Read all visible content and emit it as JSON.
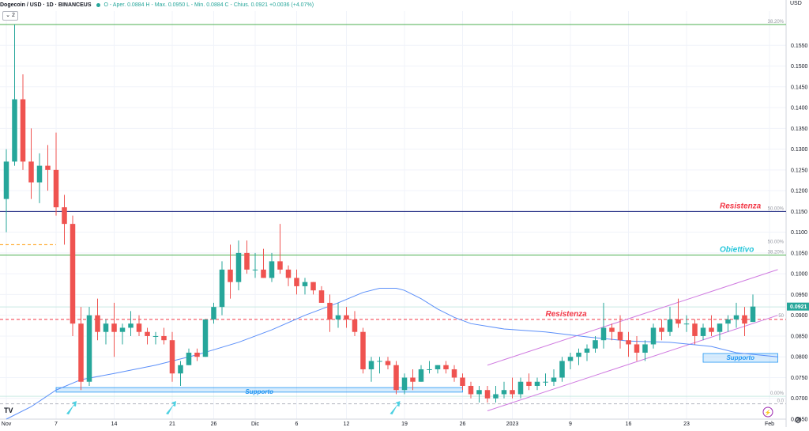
{
  "legend": {
    "symbol": "Dogecoin / USD · 1D · BINANCEUS",
    "ohlc": "O - Aper. 0.0884  H - Max. 0.0950  L - Min. 0.0884  C - Chius. 0.0921 +0.0036 (+4.07%)",
    "collapse_label": "⌄ 2"
  },
  "axis": {
    "currency": "USD",
    "settings_icon": "⚙",
    "lightning_icon": "⚡"
  },
  "chart_data": {
    "type": "candlestick",
    "title": "",
    "ylim": [
      0.065,
      0.16
    ],
    "y_ticks": [
      "0.1550",
      "0.1500",
      "0.1450",
      "0.1400",
      "0.1350",
      "0.1300",
      "0.1250",
      "0.1200",
      "0.1150",
      "0.1100",
      "0.1050",
      "0.1000",
      "0.0950",
      "0.0900",
      "0.0850",
      "0.0800",
      "0.0750",
      "0.0700",
      "0.0650"
    ],
    "x_ticks": [
      {
        "label": "Nov",
        "i": 0
      },
      {
        "label": "7",
        "i": 6
      },
      {
        "label": "14",
        "i": 13
      },
      {
        "label": "21",
        "i": 20
      },
      {
        "label": "26",
        "i": 25
      },
      {
        "label": "Dic",
        "i": 30
      },
      {
        "label": "6",
        "i": 35
      },
      {
        "label": "12",
        "i": 41
      },
      {
        "label": "19",
        "i": 48
      },
      {
        "label": "26",
        "i": 55
      },
      {
        "label": "2023",
        "i": 61
      },
      {
        "label": "9",
        "i": 68
      },
      {
        "label": "16",
        "i": 75
      },
      {
        "label": "23",
        "i": 82
      },
      {
        "label": "Feb",
        "i": 92
      }
    ],
    "candles": [
      [
        0.118,
        0.13,
        0.11,
        0.127
      ],
      [
        0.127,
        0.16,
        0.126,
        0.142
      ],
      [
        0.142,
        0.148,
        0.125,
        0.127
      ],
      [
        0.127,
        0.135,
        0.118,
        0.122
      ],
      [
        0.122,
        0.129,
        0.117,
        0.126
      ],
      [
        0.126,
        0.131,
        0.12,
        0.125
      ],
      [
        0.125,
        0.134,
        0.114,
        0.116
      ],
      [
        0.116,
        0.119,
        0.107,
        0.112
      ],
      [
        0.112,
        0.114,
        0.085,
        0.088
      ],
      [
        0.088,
        0.092,
        0.072,
        0.074
      ],
      [
        0.074,
        0.092,
        0.073,
        0.09
      ],
      [
        0.09,
        0.094,
        0.084,
        0.086
      ],
      [
        0.086,
        0.089,
        0.083,
        0.088
      ],
      [
        0.088,
        0.093,
        0.08,
        0.086
      ],
      [
        0.086,
        0.088,
        0.083,
        0.087
      ],
      [
        0.087,
        0.091,
        0.085,
        0.088
      ],
      [
        0.088,
        0.09,
        0.085,
        0.086
      ],
      [
        0.086,
        0.087,
        0.083,
        0.085
      ],
      [
        0.085,
        0.086,
        0.083,
        0.085
      ],
      [
        0.085,
        0.087,
        0.083,
        0.084
      ],
      [
        0.084,
        0.086,
        0.074,
        0.076
      ],
      [
        0.076,
        0.079,
        0.073,
        0.078
      ],
      [
        0.078,
        0.082,
        0.078,
        0.081
      ],
      [
        0.081,
        0.082,
        0.079,
        0.08
      ],
      [
        0.08,
        0.089,
        0.08,
        0.089
      ],
      [
        0.089,
        0.093,
        0.088,
        0.092
      ],
      [
        0.092,
        0.103,
        0.09,
        0.101
      ],
      [
        0.101,
        0.107,
        0.094,
        0.098
      ],
      [
        0.098,
        0.108,
        0.096,
        0.105
      ],
      [
        0.105,
        0.108,
        0.1,
        0.101
      ],
      [
        0.101,
        0.105,
        0.099,
        0.101
      ],
      [
        0.101,
        0.106,
        0.099,
        0.099
      ],
      [
        0.099,
        0.105,
        0.098,
        0.103
      ],
      [
        0.103,
        0.112,
        0.1,
        0.101
      ],
      [
        0.101,
        0.102,
        0.097,
        0.099
      ],
      [
        0.099,
        0.101,
        0.095,
        0.097
      ],
      [
        0.097,
        0.099,
        0.095,
        0.098
      ],
      [
        0.098,
        0.098,
        0.095,
        0.096
      ],
      [
        0.096,
        0.097,
        0.093,
        0.093
      ],
      [
        0.093,
        0.095,
        0.086,
        0.089
      ],
      [
        0.089,
        0.093,
        0.087,
        0.09
      ],
      [
        0.09,
        0.092,
        0.087,
        0.089
      ],
      [
        0.089,
        0.091,
        0.085,
        0.086
      ],
      [
        0.086,
        0.087,
        0.076,
        0.077
      ],
      [
        0.077,
        0.08,
        0.074,
        0.079
      ],
      [
        0.079,
        0.08,
        0.076,
        0.079
      ],
      [
        0.079,
        0.08,
        0.077,
        0.078
      ],
      [
        0.078,
        0.079,
        0.071,
        0.072
      ],
      [
        0.072,
        0.076,
        0.071,
        0.075
      ],
      [
        0.075,
        0.077,
        0.072,
        0.074
      ],
      [
        0.074,
        0.078,
        0.074,
        0.077
      ],
      [
        0.077,
        0.079,
        0.076,
        0.077
      ],
      [
        0.077,
        0.078,
        0.076,
        0.078
      ],
      [
        0.078,
        0.079,
        0.076,
        0.077
      ],
      [
        0.077,
        0.078,
        0.074,
        0.075
      ],
      [
        0.075,
        0.076,
        0.072,
        0.073
      ],
      [
        0.073,
        0.074,
        0.07,
        0.071
      ],
      [
        0.071,
        0.073,
        0.069,
        0.072
      ],
      [
        0.072,
        0.073,
        0.069,
        0.07
      ],
      [
        0.07,
        0.073,
        0.069,
        0.071
      ],
      [
        0.071,
        0.074,
        0.07,
        0.072
      ],
      [
        0.072,
        0.075,
        0.07,
        0.071
      ],
      [
        0.071,
        0.075,
        0.07,
        0.074
      ],
      [
        0.074,
        0.076,
        0.072,
        0.073
      ],
      [
        0.073,
        0.075,
        0.072,
        0.074
      ],
      [
        0.074,
        0.076,
        0.073,
        0.074
      ],
      [
        0.074,
        0.077,
        0.073,
        0.075
      ],
      [
        0.075,
        0.08,
        0.074,
        0.079
      ],
      [
        0.079,
        0.081,
        0.077,
        0.08
      ],
      [
        0.08,
        0.082,
        0.078,
        0.081
      ],
      [
        0.081,
        0.083,
        0.079,
        0.082
      ],
      [
        0.082,
        0.085,
        0.081,
        0.084
      ],
      [
        0.084,
        0.093,
        0.082,
        0.087
      ],
      [
        0.087,
        0.088,
        0.084,
        0.086
      ],
      [
        0.086,
        0.09,
        0.082,
        0.084
      ],
      [
        0.084,
        0.086,
        0.08,
        0.083
      ],
      [
        0.083,
        0.085,
        0.079,
        0.081
      ],
      [
        0.081,
        0.084,
        0.079,
        0.083
      ],
      [
        0.083,
        0.088,
        0.082,
        0.087
      ],
      [
        0.087,
        0.089,
        0.084,
        0.086
      ],
      [
        0.086,
        0.092,
        0.085,
        0.089
      ],
      [
        0.089,
        0.094,
        0.087,
        0.088
      ],
      [
        0.088,
        0.09,
        0.086,
        0.088
      ],
      [
        0.088,
        0.089,
        0.083,
        0.085
      ],
      [
        0.085,
        0.088,
        0.084,
        0.087
      ],
      [
        0.087,
        0.09,
        0.085,
        0.086
      ],
      [
        0.086,
        0.088,
        0.084,
        0.088
      ],
      [
        0.088,
        0.09,
        0.086,
        0.089
      ],
      [
        0.089,
        0.093,
        0.087,
        0.09
      ],
      [
        0.09,
        0.092,
        0.085,
        0.088
      ],
      [
        0.0884,
        0.095,
        0.0884,
        0.0921
      ]
    ],
    "moving_average": [
      [
        0,
        0.065
      ],
      [
        3,
        0.068
      ],
      [
        6,
        0.072
      ],
      [
        9,
        0.0745
      ],
      [
        13,
        0.076
      ],
      [
        18,
        0.078
      ],
      [
        23,
        0.0805
      ],
      [
        28,
        0.0835
      ],
      [
        32,
        0.0865
      ],
      [
        36,
        0.09
      ],
      [
        40,
        0.093
      ],
      [
        43,
        0.0955
      ],
      [
        45,
        0.0965
      ],
      [
        47,
        0.0965
      ],
      [
        48,
        0.096
      ],
      [
        50,
        0.094
      ],
      [
        52,
        0.0915
      ],
      [
        54,
        0.0895
      ],
      [
        56,
        0.088
      ],
      [
        60,
        0.0867
      ],
      [
        65,
        0.086
      ],
      [
        70,
        0.0848
      ],
      [
        75,
        0.0838
      ],
      [
        80,
        0.0835
      ],
      [
        85,
        0.0825
      ],
      [
        88,
        0.081
      ],
      [
        93,
        0.08
      ]
    ],
    "colors": {
      "up": "#26a69a",
      "down": "#ef5350",
      "ma": "#5b8ff9",
      "channel": "#d07be0",
      "support": "#2196f3",
      "resistance": "#f23645",
      "h_navy": "#1a237e",
      "h_green": "#4caf50",
      "arrow": "#4dd0e1",
      "grid": "#f0f3fa",
      "axis_text": "#131722",
      "fib": "#9598a1"
    },
    "hlines": [
      {
        "y": 0.16,
        "color": "#4caf50",
        "style": "solid"
      },
      {
        "y": 0.115,
        "color": "#1a237e",
        "style": "solid"
      },
      {
        "y": 0.1045,
        "color": "#4caf50",
        "style": "solid"
      },
      {
        "y": 0.089,
        "color": "#f23645",
        "style": "dashed"
      },
      {
        "y": 0.107,
        "color": "#ff9800",
        "style": "dashed",
        "to": 6
      },
      {
        "y": 0.092,
        "color": "#c9e9e3",
        "style": "solid"
      },
      {
        "y": 0.0705,
        "color": "#c9e9e3",
        "style": "solid"
      },
      {
        "y": 0.0687,
        "color": "#b2b5be",
        "style": "dashed"
      }
    ],
    "support_zones": [
      {
        "from": 6,
        "to": 55,
        "low": 0.0715,
        "high": 0.0726,
        "label": "Supporto"
      },
      {
        "from": 84,
        "to": 93,
        "low": 0.0787,
        "high": 0.0808,
        "label": "Supporto"
      }
    ],
    "channel": {
      "upper": [
        [
          58,
          0.078
        ],
        [
          93,
          0.101
        ]
      ],
      "lower": [
        [
          58,
          0.067
        ],
        [
          93,
          0.09
        ]
      ]
    },
    "annotations": [
      {
        "text": "Resistenza",
        "x": 86,
        "y": 0.1152,
        "color": "#f23645"
      },
      {
        "text": "Obiettivo",
        "x": 86,
        "y": 0.1047,
        "color": "#26c6da"
      },
      {
        "text": "Resistenza",
        "x": 65,
        "y": 0.0892,
        "color": "#f23645"
      }
    ],
    "fib_labels": [
      {
        "text": "38.20%",
        "y": 0.16
      },
      {
        "text": "50.00%",
        "y": 0.115
      },
      {
        "text": "38.20%",
        "y": 0.1045
      },
      {
        "text": "50.00%",
        "y": 0.107
      },
      {
        "text": "50",
        "y": 0.0892
      },
      {
        "text": "0.00%",
        "y": 0.0705
      },
      {
        "text": "0.0",
        "y": 0.0687
      }
    ],
    "price_tags": [
      {
        "text": "0.0921",
        "y": 0.0921,
        "color": "#26a69a"
      }
    ],
    "arrows_at": [
      8,
      20,
      47
    ]
  }
}
